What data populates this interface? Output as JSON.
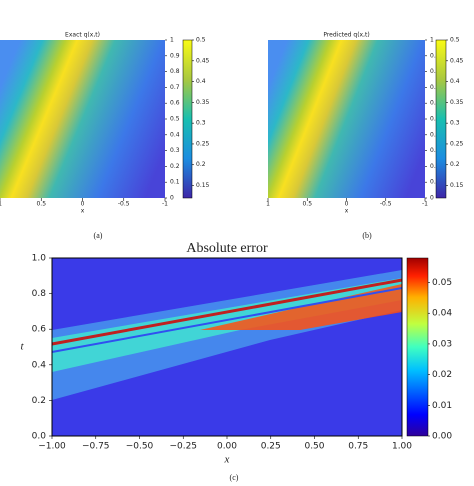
{
  "chart_data": [
    {
      "type": "heatmap",
      "title": "Exact q(x,t)",
      "xlabel": "x",
      "caption": "(a)",
      "xlim": [
        1,
        -1
      ],
      "xticks": [
        1,
        0.5,
        0,
        -0.5,
        -1
      ],
      "ylim": [
        0,
        1
      ],
      "yticks": [
        0,
        0.1,
        0.2,
        0.3,
        0.4,
        0.5,
        0.6,
        0.7,
        0.8,
        0.9,
        1
      ],
      "clim": [
        0.12,
        0.5
      ],
      "cticks": [
        0.15,
        0.2,
        0.25,
        0.3,
        0.35,
        0.4,
        0.45,
        0.5
      ],
      "colormap": "parula"
    },
    {
      "type": "heatmap",
      "title": "Predicted q(x,t)",
      "xlabel": "x",
      "caption": "(b)",
      "xlim": [
        1,
        -1
      ],
      "xticks": [
        1,
        0.5,
        0,
        -0.5,
        -1
      ],
      "ylim": [
        0,
        1
      ],
      "yticks": [
        0,
        0.1,
        0.2,
        0.3,
        0.4,
        0.5,
        0.6,
        0.7,
        0.8,
        0.9,
        1
      ],
      "clim": [
        0.12,
        0.5
      ],
      "cticks": [
        0.15,
        0.2,
        0.25,
        0.3,
        0.35,
        0.4,
        0.45,
        0.5
      ],
      "colormap": "parula"
    },
    {
      "type": "heatmap",
      "title": "Absolute error",
      "xlabel": "x",
      "ylabel": "t",
      "caption": "(c)",
      "xlim": [
        -1,
        1
      ],
      "xticks": [
        {
          "value": -1,
          "label": "−1.00"
        },
        {
          "value": -0.75,
          "label": "−0.75"
        },
        {
          "value": -0.5,
          "label": "−0.50"
        },
        {
          "value": -0.25,
          "label": "−0.25"
        },
        {
          "value": 0,
          "label": "0.00"
        },
        {
          "value": 0.25,
          "label": "0.25"
        },
        {
          "value": 0.5,
          "label": "0.50"
        },
        {
          "value": 0.75,
          "label": "0.75"
        },
        {
          "value": 1,
          "label": "1.00"
        }
      ],
      "ylim": [
        0,
        1
      ],
      "yticks": [
        {
          "value": 0,
          "label": "0.0"
        },
        0.2,
        0.4,
        0.6,
        0.8,
        {
          "value": 1,
          "label": "1.0"
        }
      ],
      "clim": [
        0,
        0.058
      ],
      "cticks": [
        {
          "value": 0,
          "label": "0.00"
        },
        {
          "value": 0.01,
          "label": "0.01"
        },
        {
          "value": 0.02,
          "label": "0.02"
        },
        {
          "value": 0.03,
          "label": "0.03"
        },
        {
          "value": 0.04,
          "label": "0.04"
        },
        {
          "value": 0.05,
          "label": "0.05"
        }
      ],
      "colormap": "jet"
    }
  ]
}
